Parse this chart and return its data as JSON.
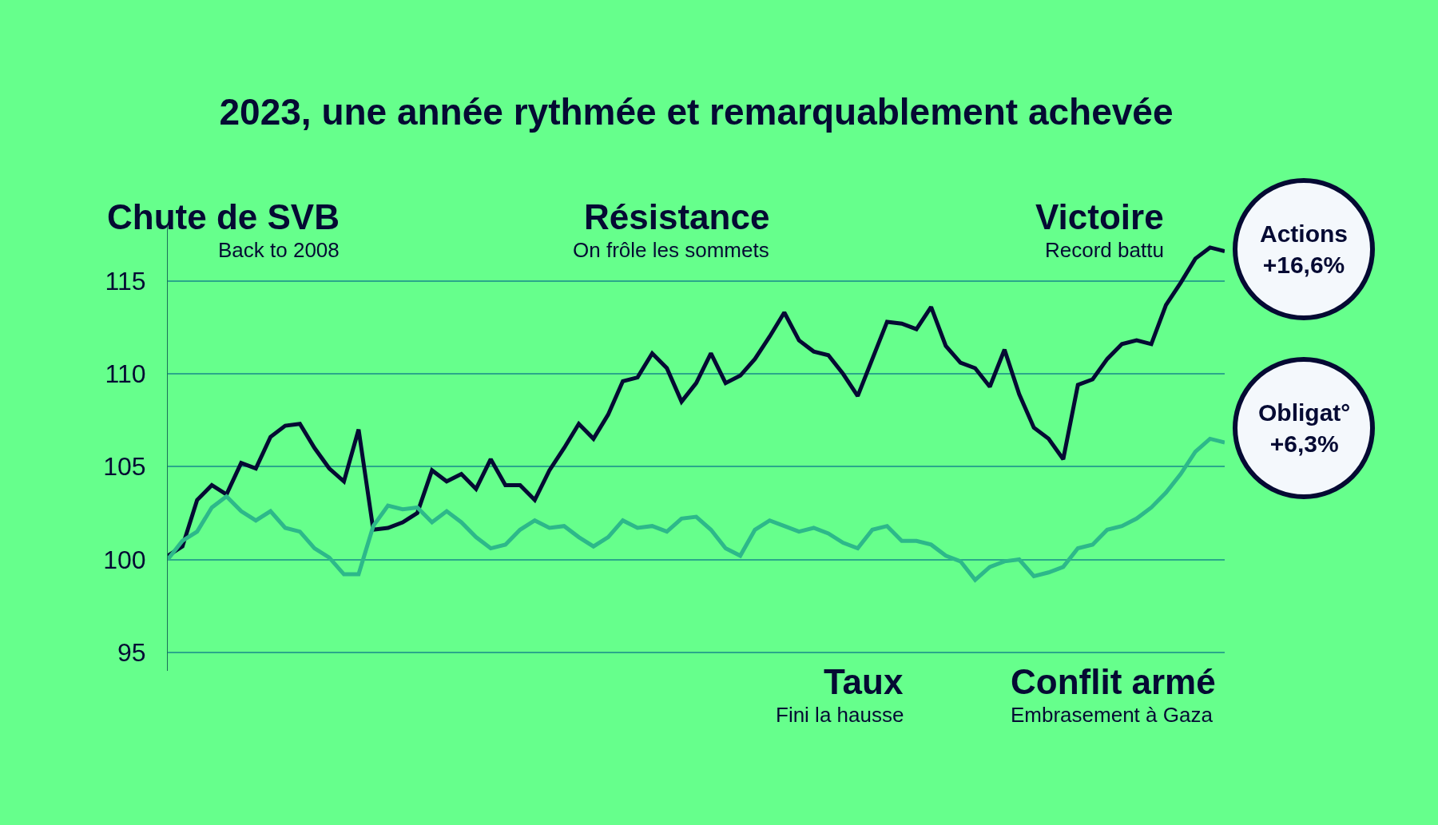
{
  "chart_data": {
    "type": "line",
    "title": "2023, une année rythmée et remarquablement achevée",
    "categories": [
      null,
      null,
      null,
      null,
      null,
      null,
      null,
      null,
      null,
      null,
      null,
      null,
      null,
      null,
      null,
      null,
      null,
      null,
      null,
      null,
      null,
      null,
      null,
      null,
      null,
      null,
      null,
      null,
      null,
      null,
      null,
      null,
      null,
      null,
      null,
      null,
      null,
      null,
      null,
      null,
      null,
      null,
      null,
      null,
      null,
      null,
      null,
      null,
      null,
      null,
      null,
      null,
      null,
      null,
      null,
      null,
      null,
      null,
      null,
      null,
      null,
      null,
      null,
      null,
      null,
      null,
      null,
      null,
      null,
      null,
      null,
      null,
      null
    ],
    "series": [
      {
        "name": "Actions",
        "color": "#050a33",
        "values": [
          100.2,
          100.7,
          103.2,
          104.0,
          103.5,
          105.2,
          104.9,
          106.6,
          107.2,
          107.3,
          106.0,
          104.9,
          104.2,
          107.0,
          101.6,
          101.7,
          102.0,
          102.5,
          104.8,
          104.2,
          104.6,
          103.8,
          105.4,
          104.0,
          104.0,
          103.2,
          104.8,
          106.0,
          107.3,
          106.5,
          107.8,
          109.6,
          109.8,
          111.1,
          110.3,
          108.5,
          109.5,
          111.1,
          109.5,
          109.9,
          110.8,
          112.0,
          113.3,
          111.8,
          111.2,
          111.0,
          110.0,
          108.8,
          110.8,
          112.8,
          112.7,
          112.4,
          113.6,
          111.5,
          110.6,
          110.3,
          109.3,
          111.3,
          108.9,
          107.1,
          106.5,
          105.4,
          109.4,
          109.7,
          110.8,
          111.6,
          111.8,
          111.6,
          113.7,
          114.9,
          116.2,
          116.8,
          116.6
        ]
      },
      {
        "name": "Obligat°",
        "color": "#2db88a",
        "values": [
          100.0,
          101.0,
          101.5,
          102.8,
          103.4,
          102.6,
          102.1,
          102.6,
          101.7,
          101.5,
          100.6,
          100.1,
          99.2,
          99.2,
          101.8,
          102.9,
          102.7,
          102.8,
          102.0,
          102.6,
          102.0,
          101.2,
          100.6,
          100.8,
          101.6,
          102.1,
          101.7,
          101.8,
          101.2,
          100.7,
          101.2,
          102.1,
          101.7,
          101.8,
          101.5,
          102.2,
          102.3,
          101.6,
          100.6,
          100.2,
          101.6,
          102.1,
          101.8,
          101.5,
          101.7,
          101.4,
          100.9,
          100.6,
          101.6,
          101.8,
          101.0,
          101.0,
          100.8,
          100.2,
          99.9,
          98.9,
          99.6,
          99.9,
          100.0,
          99.1,
          99.3,
          99.6,
          100.6,
          100.8,
          101.6,
          101.8,
          102.2,
          102.8,
          103.6,
          104.6,
          105.8,
          106.5,
          106.3
        ]
      }
    ],
    "ylim": [
      94,
      118
    ],
    "yticks": [
      95,
      100,
      105,
      110,
      115
    ],
    "grid": "y",
    "legend": false,
    "marker": "none",
    "line_style": "solid",
    "annotations": [
      "+16,6%",
      "+6,3%",
      "Chute de SVB",
      "Back to 2008",
      "Résistance",
      "On frôle les sommets",
      "Victoire",
      "Record battu",
      "Taux",
      "Fini la hausse",
      "Conflit armé",
      "Embrasement à Gaza"
    ]
  }
}
